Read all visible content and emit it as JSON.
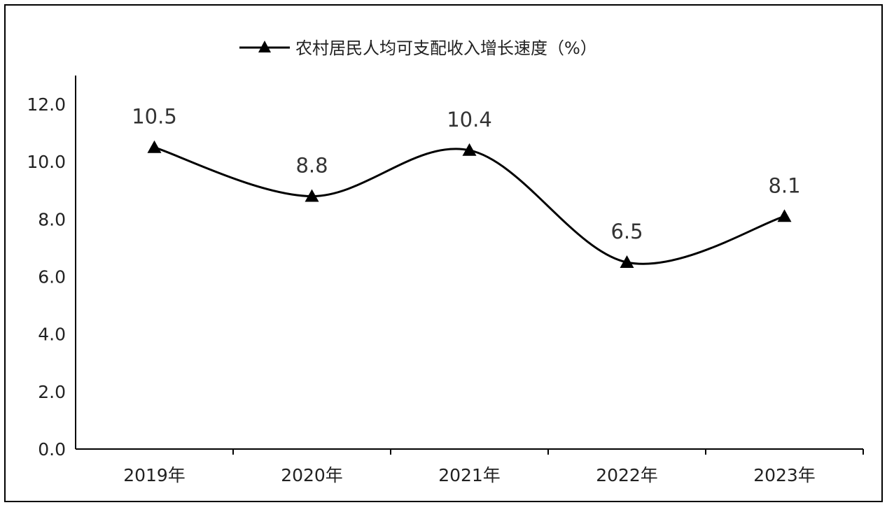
{
  "chart_data": {
    "type": "line",
    "categories": [
      "2019年",
      "2020年",
      "2021年",
      "2022年",
      "2023年"
    ],
    "series": [
      {
        "name": "农村居民人均可支配收入增长速度（%）",
        "values": [
          10.5,
          8.8,
          10.4,
          6.5,
          8.1
        ]
      }
    ],
    "y_ticks": [
      "0.0",
      "2.0",
      "4.0",
      "6.0",
      "8.0",
      "10.0",
      "12.0"
    ],
    "ylim": [
      0,
      13
    ],
    "data_labels": [
      "10.5",
      "8.8",
      "10.4",
      "6.5",
      "8.1"
    ],
    "title": "",
    "xlabel": "",
    "ylabel": "",
    "legend": "top-center",
    "grid": false,
    "marker": "triangle",
    "line_style": "smooth",
    "colors": {
      "line": "#000000",
      "text": "#222222",
      "data_label": "#333333"
    }
  }
}
